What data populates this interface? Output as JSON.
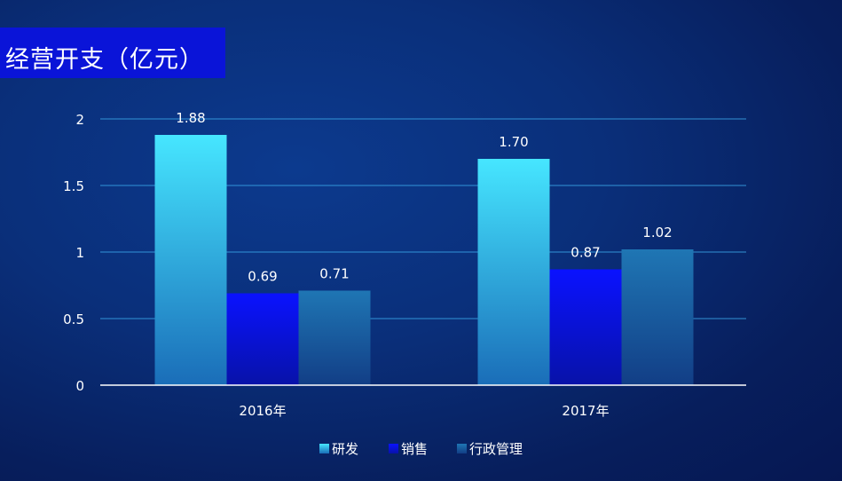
{
  "title": "经营开支（亿元）",
  "colors": {
    "series_1_top": "#46e6ff",
    "series_1_bottom": "#1a6db8",
    "series_2_top": "#0a12ff",
    "series_2_bottom": "#0812a8",
    "series_3_top": "#1f76b4",
    "series_3_bottom": "#123e86",
    "gridline": "#3aa6e8",
    "axis": "#ffffff"
  },
  "chart_data": {
    "type": "bar",
    "title": "经营开支（亿元）",
    "categories": [
      "2016年",
      "2017年"
    ],
    "series": [
      {
        "name": "研发",
        "values": [
          1.88,
          1.7
        ],
        "labels": [
          "1.88",
          "1.70"
        ]
      },
      {
        "name": "销售",
        "values": [
          0.69,
          0.87
        ],
        "labels": [
          "0.69",
          "0.87"
        ]
      },
      {
        "name": "行政管理",
        "values": [
          0.71,
          1.02
        ],
        "labels": [
          "0.71",
          "1.02"
        ]
      }
    ],
    "ylim": [
      0,
      2
    ],
    "yticks": [
      "0",
      "0.5",
      "1",
      "1.5",
      "2"
    ],
    "xlabel": "",
    "ylabel": "",
    "grid": true,
    "legend": "bottom"
  }
}
